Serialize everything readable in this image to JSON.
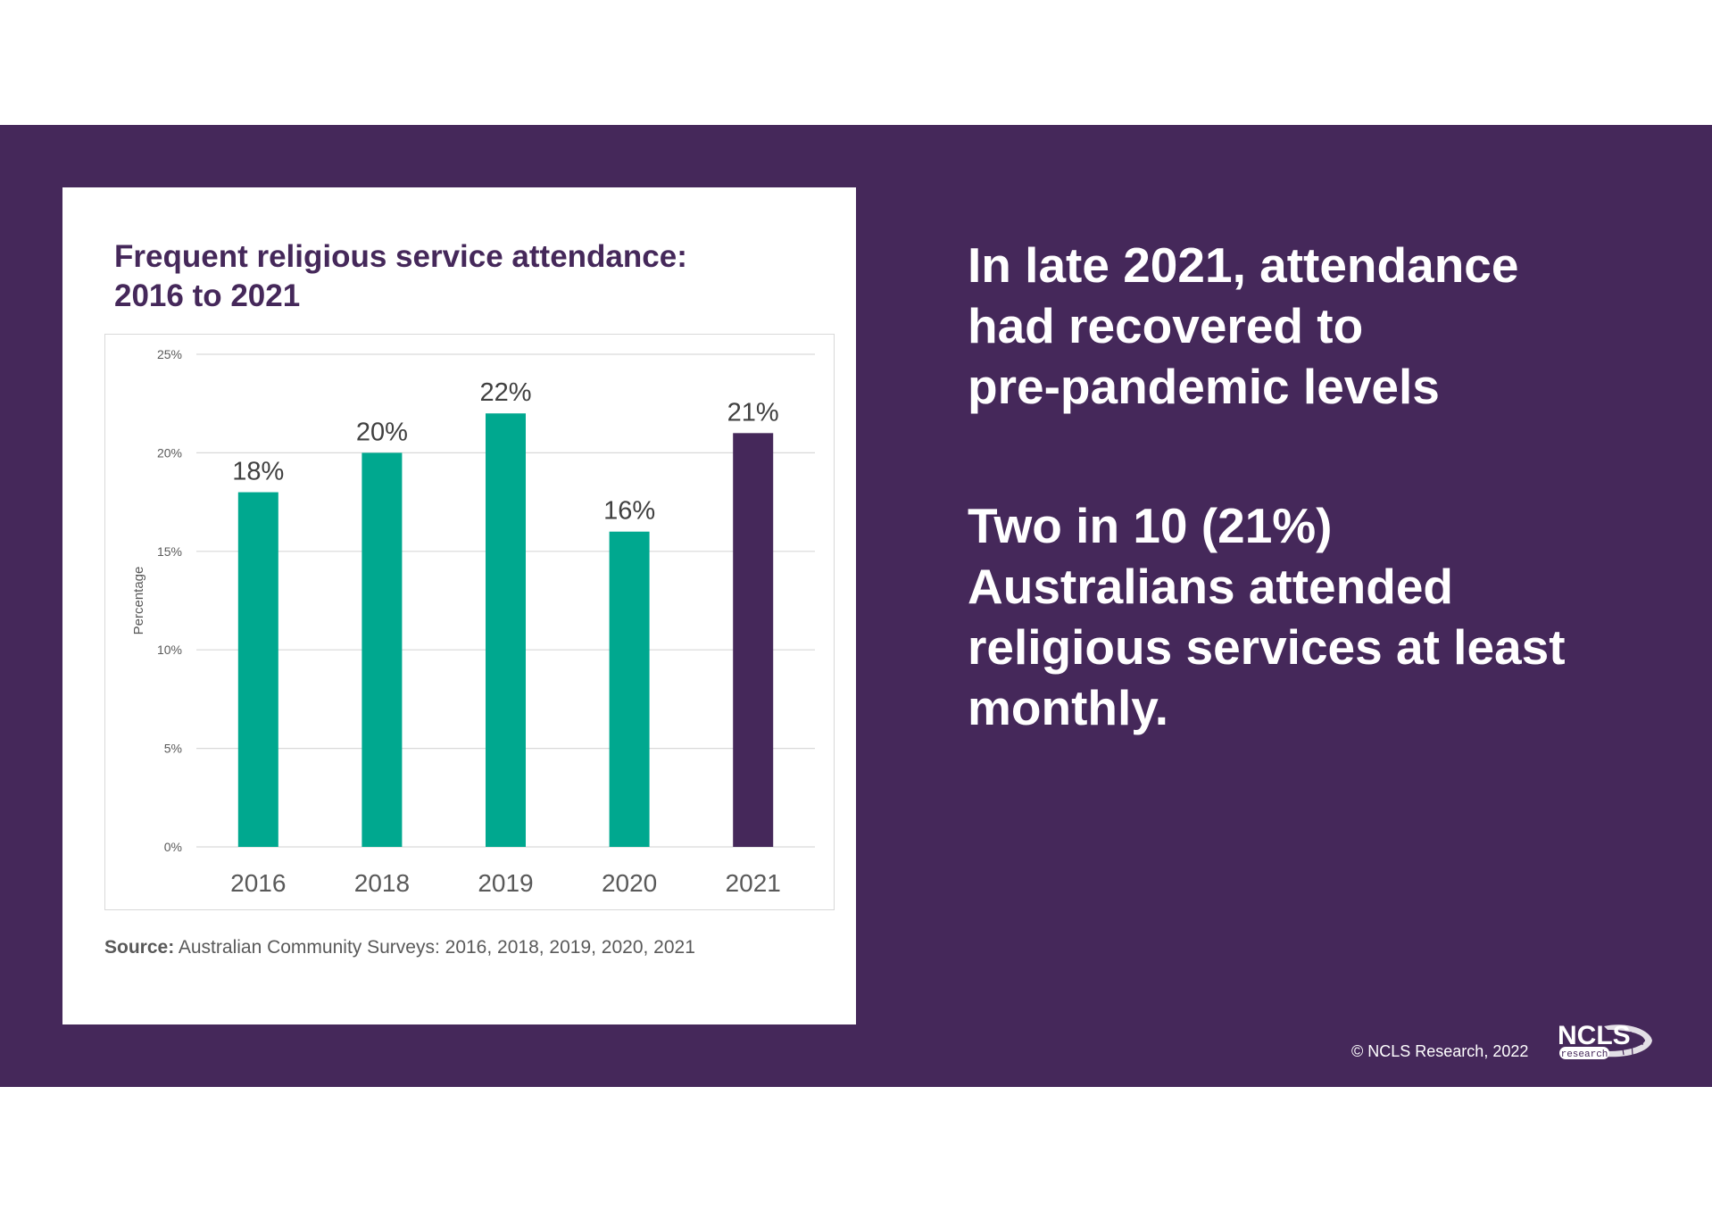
{
  "chart_data": {
    "type": "bar",
    "title": "Frequent religious service attendance:\n2016 to 2021",
    "categories": [
      "2016",
      "2018",
      "2019",
      "2020",
      "2021"
    ],
    "values": [
      18,
      20,
      22,
      16,
      21
    ],
    "data_labels": [
      "18%",
      "20%",
      "22%",
      "16%",
      "21%"
    ],
    "ylabel": "Percentage",
    "ylim": [
      0,
      25
    ],
    "yticks": [
      0,
      5,
      10,
      15,
      20,
      25
    ],
    "ytick_labels": [
      "0%",
      "5%",
      "10%",
      "15%",
      "20%",
      "25%"
    ],
    "grid": true,
    "bar_colors": [
      "#00a88f",
      "#00a88f",
      "#00a88f",
      "#00a88f",
      "#45285a"
    ]
  },
  "source": {
    "label": "Source:",
    "text": "Australian Community Surveys: 2016, 2018, 2019, 2020, 2021"
  },
  "headline_1": "In late 2021, attendance\nhad recovered to\npre-pandemic levels",
  "headline_2": "Two in 10 (21%)\nAustralians attended\nreligious services at least\nmonthly.",
  "footer": {
    "copyright": "© NCLS Research, 2022",
    "logo_text": "NCLS",
    "logo_subtext": "research"
  },
  "colors": {
    "brand_purple": "#45285a",
    "accent_teal": "#00a88f"
  }
}
